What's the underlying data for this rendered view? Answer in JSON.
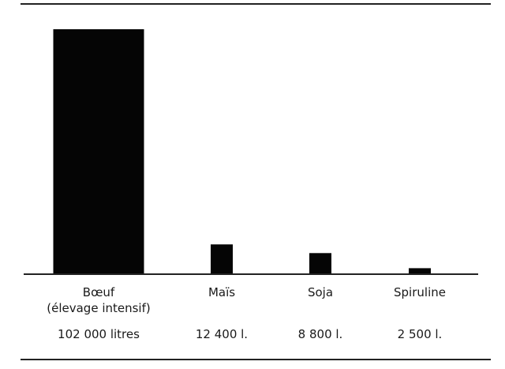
{
  "chart_data": {
    "type": "bar",
    "categories": [
      [
        "Bœuf",
        "(élevage intensif)"
      ],
      [
        "Maïs"
      ],
      [
        "Soja"
      ],
      [
        "Spiruline"
      ]
    ],
    "values": [
      102000,
      12400,
      8800,
      2500
    ],
    "value_labels": [
      "102 000 litres",
      "12 400 l.",
      "8 800 l.",
      "2 500 l."
    ],
    "title": "",
    "xlabel": "",
    "ylabel": "",
    "colors": {
      "bar": "#050505",
      "rule": "#222222",
      "text": "#1a1a1a",
      "background": "#ffffff"
    }
  }
}
